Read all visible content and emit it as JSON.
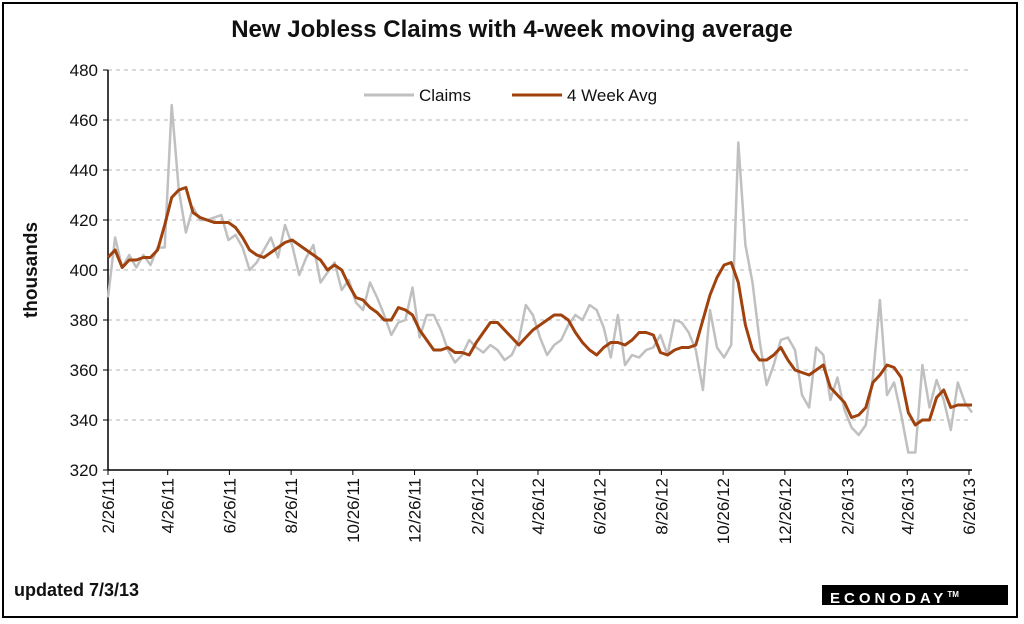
{
  "chart_data": {
    "type": "line",
    "title": "New Jobless Claims with 4-week moving average",
    "ylabel": "thousands",
    "ylim": [
      320,
      480
    ],
    "yticks": [
      320,
      340,
      360,
      380,
      400,
      420,
      440,
      460,
      480
    ],
    "xlim": [
      "2011-02-26",
      "2013-06-29"
    ],
    "xticks": [
      "2/26/11",
      "4/26/11",
      "6/26/11",
      "8/26/11",
      "10/26/11",
      "12/26/11",
      "2/26/12",
      "4/26/12",
      "6/26/12",
      "8/26/12",
      "10/26/12",
      "12/26/12",
      "2/26/13",
      "4/26/13",
      "6/26/13"
    ],
    "xtick_dates": [
      "2011-02-26",
      "2011-04-26",
      "2011-06-26",
      "2011-08-26",
      "2011-10-26",
      "2011-12-26",
      "2012-02-26",
      "2012-04-26",
      "2012-06-26",
      "2012-08-26",
      "2012-10-26",
      "2012-12-26",
      "2013-02-26",
      "2013-04-26",
      "2013-06-26"
    ],
    "grid": "horizontal dashed",
    "legend_position": "top-center",
    "series": [
      {
        "name": "Claims",
        "color": "#c0c0c0",
        "points": [
          [
            "2011-02-26",
            389
          ],
          [
            "2011-03-05",
            413
          ],
          [
            "2011-03-12",
            401
          ],
          [
            "2011-03-19",
            406
          ],
          [
            "2011-03-26",
            401
          ],
          [
            "2011-04-02",
            406
          ],
          [
            "2011-04-09",
            402
          ],
          [
            "2011-04-16",
            409
          ],
          [
            "2011-04-23",
            409
          ],
          [
            "2011-04-30",
            466
          ],
          [
            "2011-05-07",
            432
          ],
          [
            "2011-05-14",
            415
          ],
          [
            "2011-05-21",
            425
          ],
          [
            "2011-05-28",
            420
          ],
          [
            "2011-06-04",
            420
          ],
          [
            "2011-06-11",
            421
          ],
          [
            "2011-06-18",
            422
          ],
          [
            "2011-06-25",
            412
          ],
          [
            "2011-07-02",
            414
          ],
          [
            "2011-07-09",
            409
          ],
          [
            "2011-07-16",
            400
          ],
          [
            "2011-07-23",
            403
          ],
          [
            "2011-07-30",
            408
          ],
          [
            "2011-08-06",
            413
          ],
          [
            "2011-08-13",
            405
          ],
          [
            "2011-08-20",
            418
          ],
          [
            "2011-08-27",
            410
          ],
          [
            "2011-09-03",
            398
          ],
          [
            "2011-09-10",
            405
          ],
          [
            "2011-09-17",
            410
          ],
          [
            "2011-09-24",
            395
          ],
          [
            "2011-10-01",
            399
          ],
          [
            "2011-10-08",
            403
          ],
          [
            "2011-10-15",
            392
          ],
          [
            "2011-10-22",
            396
          ],
          [
            "2011-10-29",
            387
          ],
          [
            "2011-11-05",
            384
          ],
          [
            "2011-11-12",
            395
          ],
          [
            "2011-11-19",
            389
          ],
          [
            "2011-11-26",
            382
          ],
          [
            "2011-12-03",
            374
          ],
          [
            "2011-12-10",
            379
          ],
          [
            "2011-12-17",
            380
          ],
          [
            "2011-12-24",
            393
          ],
          [
            "2011-12-31",
            373
          ],
          [
            "2012-01-07",
            382
          ],
          [
            "2012-01-14",
            382
          ],
          [
            "2012-01-21",
            376
          ],
          [
            "2012-01-28",
            368
          ],
          [
            "2012-02-04",
            363
          ],
          [
            "2012-02-11",
            366
          ],
          [
            "2012-02-18",
            372
          ],
          [
            "2012-02-25",
            369
          ],
          [
            "2012-03-03",
            367
          ],
          [
            "2012-03-10",
            370
          ],
          [
            "2012-03-17",
            368
          ],
          [
            "2012-03-24",
            364
          ],
          [
            "2012-03-31",
            366
          ],
          [
            "2012-04-07",
            372
          ],
          [
            "2012-04-14",
            386
          ],
          [
            "2012-04-21",
            382
          ],
          [
            "2012-04-28",
            373
          ],
          [
            "2012-05-05",
            366
          ],
          [
            "2012-05-12",
            370
          ],
          [
            "2012-05-19",
            372
          ],
          [
            "2012-05-26",
            378
          ],
          [
            "2012-06-02",
            382
          ],
          [
            "2012-06-09",
            380
          ],
          [
            "2012-06-16",
            386
          ],
          [
            "2012-06-23",
            384
          ],
          [
            "2012-06-30",
            377
          ],
          [
            "2012-07-07",
            365
          ],
          [
            "2012-07-14",
            382
          ],
          [
            "2012-07-21",
            362
          ],
          [
            "2012-07-28",
            366
          ],
          [
            "2012-08-04",
            365
          ],
          [
            "2012-08-11",
            368
          ],
          [
            "2012-08-18",
            369
          ],
          [
            "2012-08-25",
            374
          ],
          [
            "2012-09-01",
            366
          ],
          [
            "2012-09-08",
            380
          ],
          [
            "2012-09-15",
            379
          ],
          [
            "2012-09-22",
            375
          ],
          [
            "2012-09-29",
            368
          ],
          [
            "2012-10-06",
            352
          ],
          [
            "2012-10-13",
            384
          ],
          [
            "2012-10-20",
            369
          ],
          [
            "2012-10-27",
            365
          ],
          [
            "2012-11-03",
            370
          ],
          [
            "2012-11-10",
            451
          ],
          [
            "2012-11-17",
            410
          ],
          [
            "2012-11-24",
            395
          ],
          [
            "2012-12-01",
            372
          ],
          [
            "2012-12-08",
            354
          ],
          [
            "2012-12-15",
            362
          ],
          [
            "2012-12-22",
            372
          ],
          [
            "2012-12-29",
            373
          ],
          [
            "2013-01-05",
            368
          ],
          [
            "2013-01-12",
            350
          ],
          [
            "2013-01-19",
            345
          ],
          [
            "2013-01-26",
            369
          ],
          [
            "2013-02-02",
            366
          ],
          [
            "2013-02-09",
            348
          ],
          [
            "2013-02-16",
            357
          ],
          [
            "2013-02-23",
            344
          ],
          [
            "2013-03-02",
            337
          ],
          [
            "2013-03-09",
            334
          ],
          [
            "2013-03-16",
            338
          ],
          [
            "2013-03-23",
            357
          ],
          [
            "2013-03-30",
            388
          ],
          [
            "2013-04-06",
            350
          ],
          [
            "2013-04-13",
            355
          ],
          [
            "2013-04-20",
            342
          ],
          [
            "2013-04-27",
            327
          ],
          [
            "2013-05-04",
            327
          ],
          [
            "2013-05-11",
            362
          ],
          [
            "2013-05-18",
            345
          ],
          [
            "2013-05-25",
            356
          ],
          [
            "2013-06-01",
            348
          ],
          [
            "2013-06-08",
            336
          ],
          [
            "2013-06-15",
            355
          ],
          [
            "2013-06-22",
            347
          ],
          [
            "2013-06-29",
            343
          ]
        ]
      },
      {
        "name": "4 Week Avg",
        "color": "#a0420e",
        "points": [
          [
            "2011-02-26",
            405
          ],
          [
            "2011-03-05",
            408
          ],
          [
            "2011-03-12",
            401
          ],
          [
            "2011-03-19",
            404
          ],
          [
            "2011-03-26",
            404
          ],
          [
            "2011-04-02",
            405
          ],
          [
            "2011-04-09",
            405
          ],
          [
            "2011-04-16",
            408
          ],
          [
            "2011-04-23",
            418
          ],
          [
            "2011-04-30",
            429
          ],
          [
            "2011-05-07",
            432
          ],
          [
            "2011-05-14",
            433
          ],
          [
            "2011-05-21",
            423
          ],
          [
            "2011-05-28",
            421
          ],
          [
            "2011-06-04",
            420
          ],
          [
            "2011-06-11",
            419
          ],
          [
            "2011-06-18",
            419
          ],
          [
            "2011-06-25",
            419
          ],
          [
            "2011-07-02",
            417
          ],
          [
            "2011-07-09",
            413
          ],
          [
            "2011-07-16",
            408
          ],
          [
            "2011-07-23",
            406
          ],
          [
            "2011-07-30",
            405
          ],
          [
            "2011-08-06",
            407
          ],
          [
            "2011-08-13",
            409
          ],
          [
            "2011-08-20",
            411
          ],
          [
            "2011-08-27",
            412
          ],
          [
            "2011-09-03",
            410
          ],
          [
            "2011-09-10",
            408
          ],
          [
            "2011-09-17",
            406
          ],
          [
            "2011-09-24",
            404
          ],
          [
            "2011-10-01",
            400
          ],
          [
            "2011-10-08",
            402
          ],
          [
            "2011-10-15",
            400
          ],
          [
            "2011-10-22",
            394
          ],
          [
            "2011-10-29",
            389
          ],
          [
            "2011-11-05",
            388
          ],
          [
            "2011-11-12",
            385
          ],
          [
            "2011-11-19",
            383
          ],
          [
            "2011-11-26",
            380
          ],
          [
            "2011-12-03",
            380
          ],
          [
            "2011-12-10",
            385
          ],
          [
            "2011-12-17",
            384
          ],
          [
            "2011-12-24",
            382
          ],
          [
            "2011-12-31",
            376
          ],
          [
            "2012-01-07",
            372
          ],
          [
            "2012-01-14",
            368
          ],
          [
            "2012-01-21",
            368
          ],
          [
            "2012-01-28",
            369
          ],
          [
            "2012-02-04",
            367
          ],
          [
            "2012-02-11",
            367
          ],
          [
            "2012-02-18",
            366
          ],
          [
            "2012-02-25",
            371
          ],
          [
            "2012-03-03",
            375
          ],
          [
            "2012-03-10",
            379
          ],
          [
            "2012-03-17",
            379
          ],
          [
            "2012-03-24",
            376
          ],
          [
            "2012-03-31",
            373
          ],
          [
            "2012-04-07",
            370
          ],
          [
            "2012-04-14",
            373
          ],
          [
            "2012-04-21",
            376
          ],
          [
            "2012-04-28",
            378
          ],
          [
            "2012-05-05",
            380
          ],
          [
            "2012-05-12",
            382
          ],
          [
            "2012-05-19",
            382
          ],
          [
            "2012-05-26",
            380
          ],
          [
            "2012-06-02",
            375
          ],
          [
            "2012-06-09",
            371
          ],
          [
            "2012-06-16",
            368
          ],
          [
            "2012-06-23",
            366
          ],
          [
            "2012-06-30",
            369
          ],
          [
            "2012-07-07",
            371
          ],
          [
            "2012-07-14",
            371
          ],
          [
            "2012-07-21",
            370
          ],
          [
            "2012-07-28",
            372
          ],
          [
            "2012-08-04",
            375
          ],
          [
            "2012-08-11",
            375
          ],
          [
            "2012-08-18",
            374
          ],
          [
            "2012-08-25",
            367
          ],
          [
            "2012-09-01",
            366
          ],
          [
            "2012-09-08",
            368
          ],
          [
            "2012-09-15",
            369
          ],
          [
            "2012-09-22",
            369
          ],
          [
            "2012-09-29",
            370
          ],
          [
            "2012-10-06",
            380
          ],
          [
            "2012-10-13",
            390
          ],
          [
            "2012-10-20",
            397
          ],
          [
            "2012-10-27",
            402
          ],
          [
            "2012-11-03",
            403
          ],
          [
            "2012-11-10",
            395
          ],
          [
            "2012-11-17",
            378
          ],
          [
            "2012-11-24",
            368
          ],
          [
            "2012-12-01",
            364
          ],
          [
            "2012-12-08",
            364
          ],
          [
            "2012-12-15",
            366
          ],
          [
            "2012-12-22",
            369
          ],
          [
            "2012-12-29",
            364
          ],
          [
            "2013-01-05",
            360
          ],
          [
            "2013-01-12",
            359
          ],
          [
            "2013-01-19",
            358
          ],
          [
            "2013-01-26",
            360
          ],
          [
            "2013-02-02",
            362
          ],
          [
            "2013-02-09",
            353
          ],
          [
            "2013-02-16",
            350
          ],
          [
            "2013-02-23",
            347
          ],
          [
            "2013-03-02",
            341
          ],
          [
            "2013-03-09",
            342
          ],
          [
            "2013-03-16",
            345
          ],
          [
            "2013-03-23",
            355
          ],
          [
            "2013-03-30",
            358
          ],
          [
            "2013-04-06",
            362
          ],
          [
            "2013-04-13",
            361
          ],
          [
            "2013-04-20",
            357
          ],
          [
            "2013-04-27",
            343
          ],
          [
            "2013-05-04",
            338
          ],
          [
            "2013-05-11",
            340
          ],
          [
            "2013-05-18",
            340
          ],
          [
            "2013-05-25",
            349
          ],
          [
            "2013-06-01",
            352
          ],
          [
            "2013-06-08",
            345
          ],
          [
            "2013-06-15",
            346
          ],
          [
            "2013-06-22",
            346
          ],
          [
            "2013-06-29",
            346
          ]
        ]
      }
    ]
  },
  "footer": {
    "updated": "updated 7/3/13",
    "logo": "ECONODAY",
    "logo_tm": "TM"
  }
}
